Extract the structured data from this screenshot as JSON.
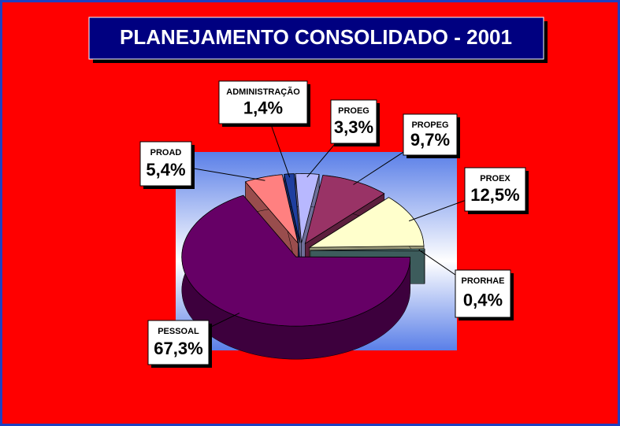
{
  "chart_data": {
    "type": "pie",
    "title": "PLANEJAMENTO CONSOLIDADO - 2001",
    "categories": [
      "ADMINISTRAÇÃO",
      "PROEG",
      "PROPEG",
      "PROEX",
      "PRORHAE",
      "PESSOAL",
      "PROAD"
    ],
    "values": [
      1.4,
      3.3,
      9.7,
      12.5,
      0.4,
      67.3,
      5.4
    ],
    "value_labels": [
      "1,4%",
      "3,3%",
      "9,7%",
      "12,5%",
      "0,4%",
      "67,3%",
      "5,4%"
    ],
    "colors": [
      "#1f3f9f",
      "#b8b8ff",
      "#993366",
      "#ffffcc",
      "#669999",
      "#660066",
      "#ff8080"
    ]
  }
}
